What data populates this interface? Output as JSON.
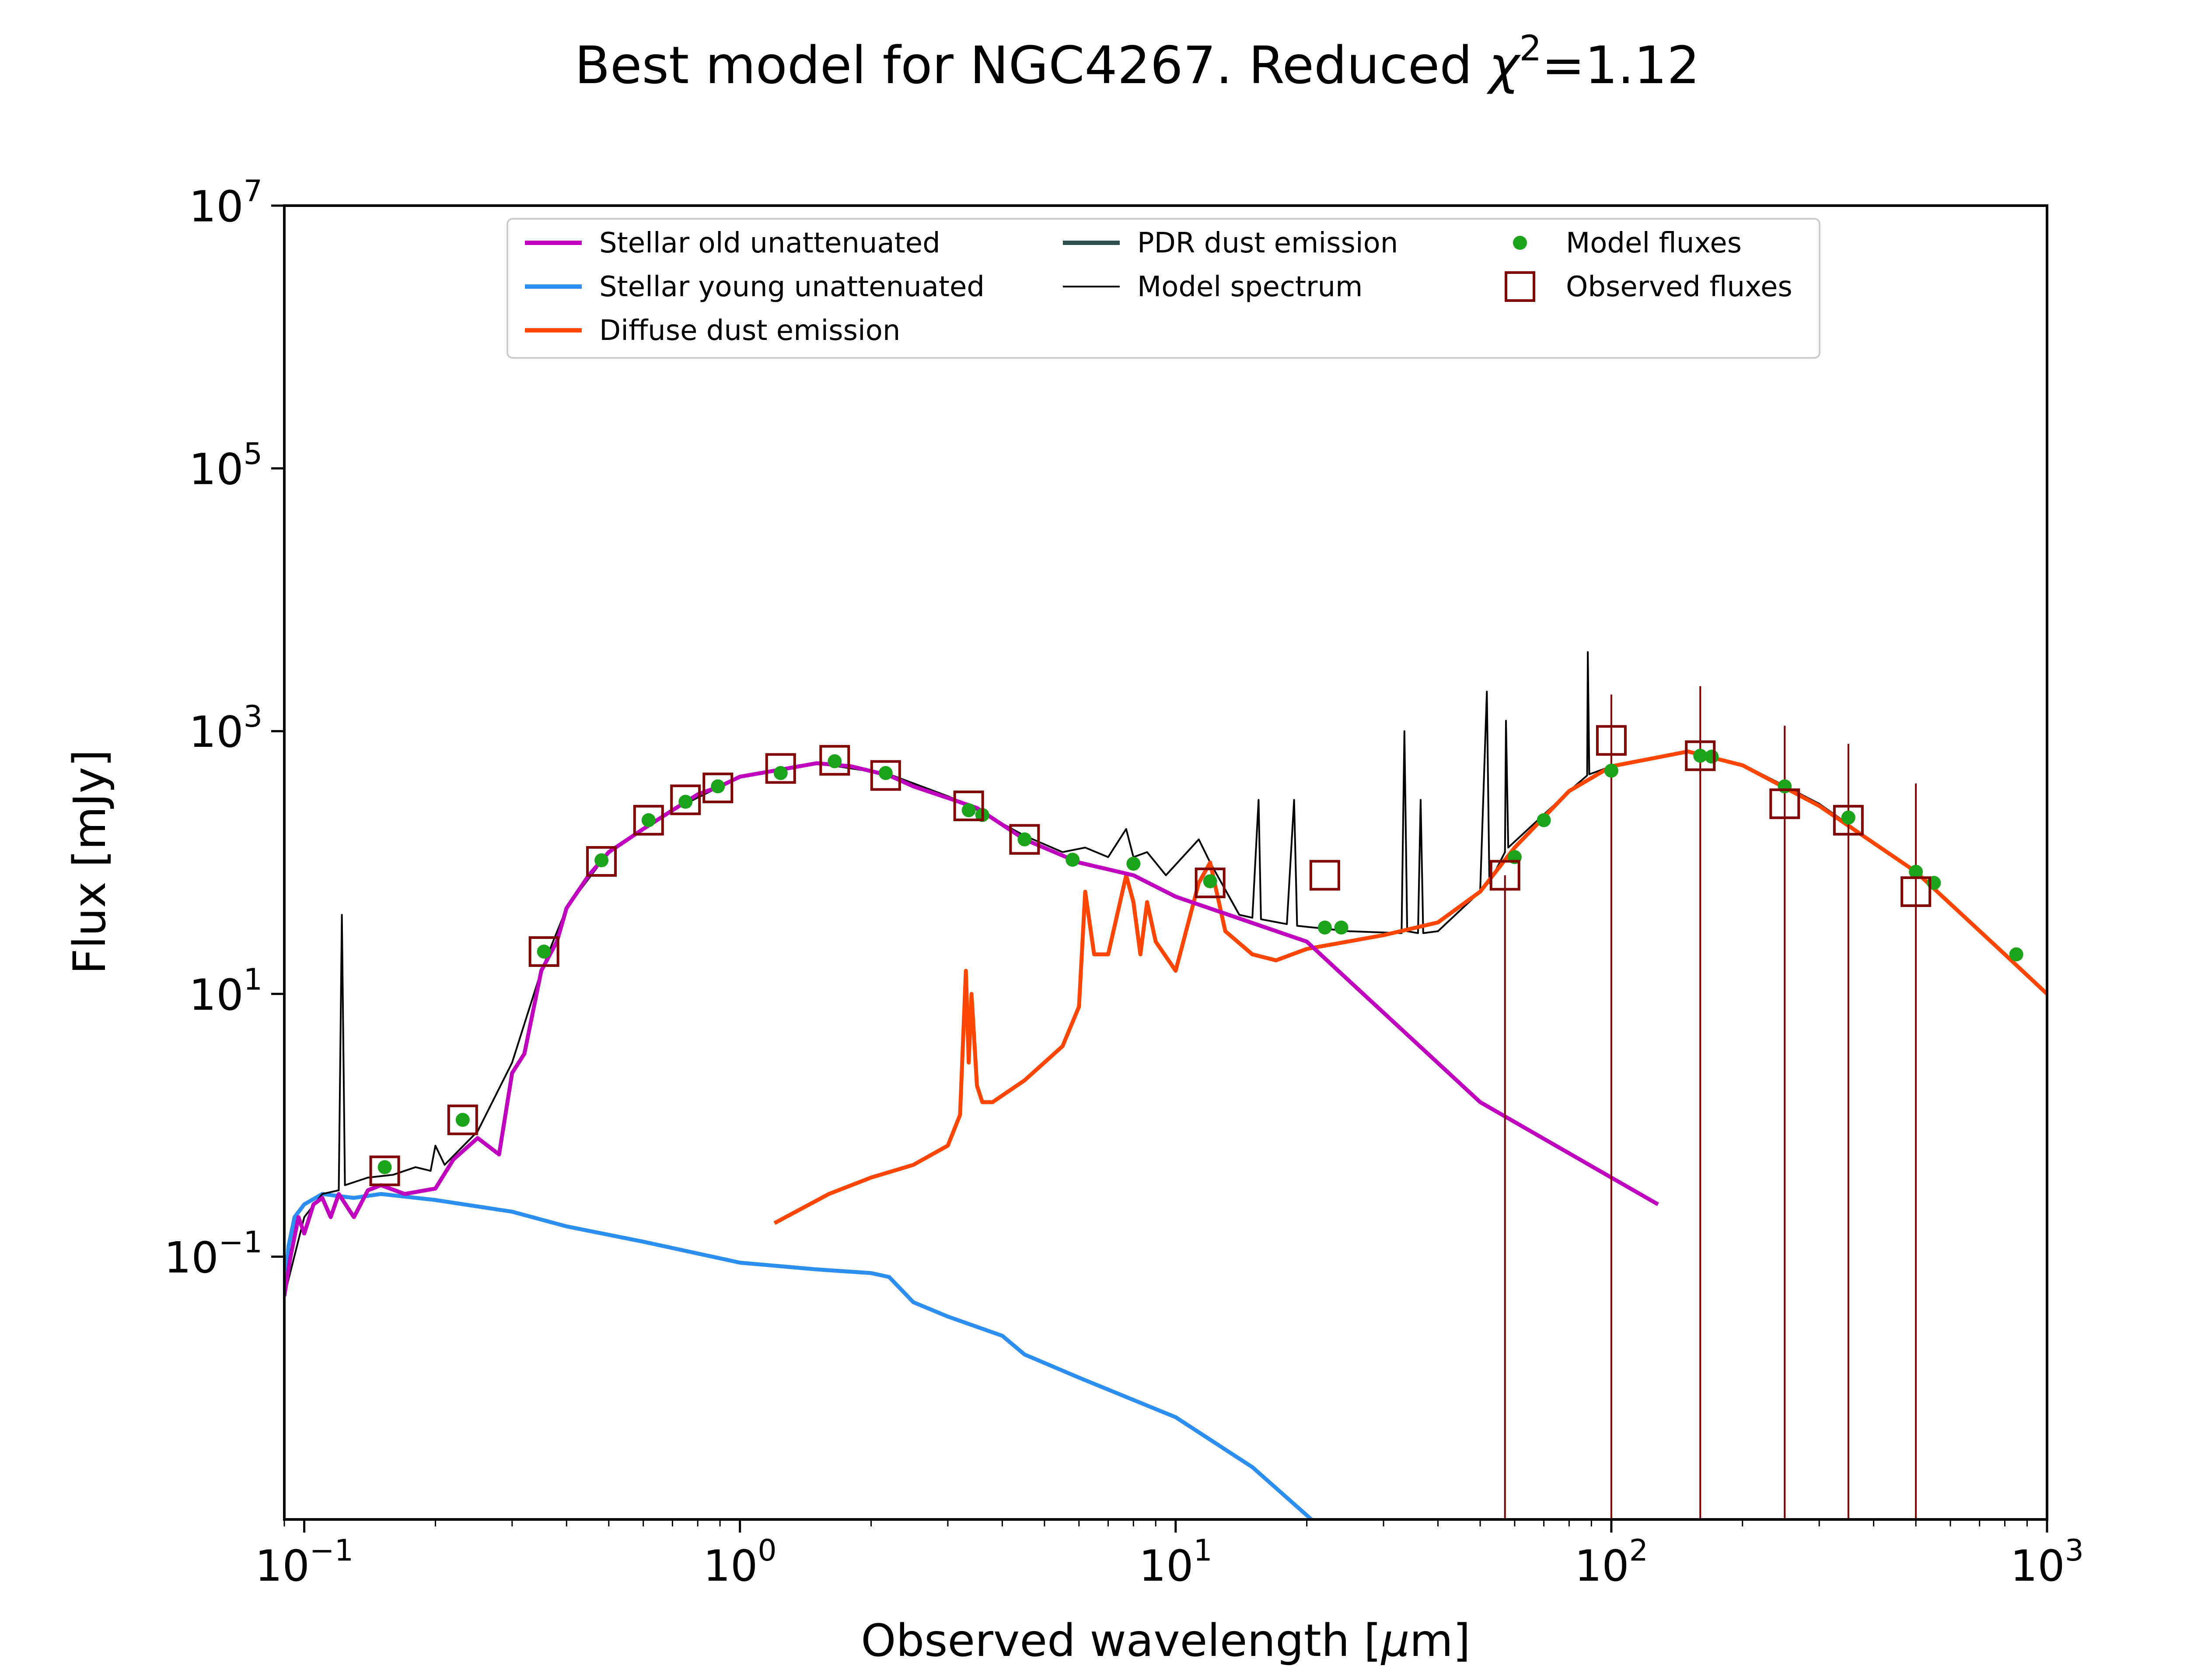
{
  "chart_data": {
    "type": "line",
    "title_text": "Best model for NGC4267. Reduced ",
    "title_chi": "χ",
    "title_chi_exp": "2",
    "title_value": "=1.12",
    "xlabel_text": "Observed wavelength [",
    "xlabel_mu": "μ",
    "xlabel_unit": "m]",
    "ylabel": "Flux [mJy]",
    "x_scale": "log",
    "y_scale": "log",
    "xlim": [
      0.09,
      1000
    ],
    "ylim": [
      0.001,
      10000000
    ],
    "grid": false,
    "legend_placement": "top",
    "x_ticks": [
      {
        "base": "10",
        "exp": "−1",
        "value": 0.1
      },
      {
        "base": "10",
        "exp": "0",
        "value": 1
      },
      {
        "base": "10",
        "exp": "1",
        "value": 10
      },
      {
        "base": "10",
        "exp": "2",
        "value": 100
      },
      {
        "base": "10",
        "exp": "3",
        "value": 1000
      }
    ],
    "y_ticks": [
      {
        "base": "10",
        "exp": "−1",
        "value": 0.1
      },
      {
        "base": "10",
        "exp": "1",
        "value": 10
      },
      {
        "base": "10",
        "exp": "3",
        "value": 1000
      },
      {
        "base": "10",
        "exp": "5",
        "value": 100000
      },
      {
        "base": "10",
        "exp": "7",
        "value": 10000000
      }
    ],
    "series": [
      {
        "name": "Stellar old unattenuated",
        "color": "#bf00bf",
        "points": [
          [
            0.09,
            0.05
          ],
          [
            0.093,
            0.1
          ],
          [
            0.097,
            0.2
          ],
          [
            0.1,
            0.15
          ],
          [
            0.105,
            0.25
          ],
          [
            0.11,
            0.28
          ],
          [
            0.115,
            0.2
          ],
          [
            0.12,
            0.3
          ],
          [
            0.13,
            0.2
          ],
          [
            0.14,
            0.32
          ],
          [
            0.15,
            0.35
          ],
          [
            0.17,
            0.3
          ],
          [
            0.2,
            0.33
          ],
          [
            0.22,
            0.55
          ],
          [
            0.25,
            0.8
          ],
          [
            0.28,
            0.6
          ],
          [
            0.3,
            2.5
          ],
          [
            0.32,
            3.5
          ],
          [
            0.35,
            15
          ],
          [
            0.38,
            25
          ],
          [
            0.4,
            45
          ],
          [
            0.45,
            80
          ],
          [
            0.5,
            120
          ],
          [
            0.6,
            180
          ],
          [
            0.7,
            250
          ],
          [
            0.8,
            330
          ],
          [
            0.9,
            380
          ],
          [
            1.0,
            450
          ],
          [
            1.2,
            500
          ],
          [
            1.5,
            570
          ],
          [
            1.8,
            540
          ],
          [
            2.2,
            460
          ],
          [
            2.5,
            380
          ],
          [
            3.0,
            310
          ],
          [
            3.5,
            260
          ],
          [
            4.5,
            150
          ],
          [
            6,
            100
          ],
          [
            8,
            80
          ],
          [
            10,
            55
          ],
          [
            20,
            25
          ],
          [
            50,
            1.5
          ],
          [
            100,
            0.4
          ],
          [
            128,
            0.25
          ]
        ]
      },
      {
        "name": "Stellar young unattenuated",
        "color": "#2c8ef0",
        "points": [
          [
            0.09,
            0.05
          ],
          [
            0.092,
            0.12
          ],
          [
            0.095,
            0.2
          ],
          [
            0.1,
            0.25
          ],
          [
            0.11,
            0.3
          ],
          [
            0.13,
            0.28
          ],
          [
            0.15,
            0.3
          ],
          [
            0.2,
            0.27
          ],
          [
            0.3,
            0.22
          ],
          [
            0.4,
            0.17
          ],
          [
            0.6,
            0.13
          ],
          [
            1.0,
            0.09
          ],
          [
            1.5,
            0.08
          ],
          [
            2.0,
            0.075
          ],
          [
            2.2,
            0.07
          ],
          [
            2.5,
            0.045
          ],
          [
            3,
            0.035
          ],
          [
            4,
            0.025
          ],
          [
            4.5,
            0.018
          ],
          [
            6,
            0.012
          ],
          [
            10,
            0.006
          ],
          [
            15,
            0.0025
          ],
          [
            20.5,
            0.001
          ]
        ]
      },
      {
        "name": "Diffuse dust emission",
        "color": "#ff4500",
        "points": [
          [
            1.2,
            0.18
          ],
          [
            1.6,
            0.3
          ],
          [
            2.0,
            0.4
          ],
          [
            2.5,
            0.5
          ],
          [
            3.0,
            0.7
          ],
          [
            3.2,
            1.2
          ],
          [
            3.3,
            15
          ],
          [
            3.35,
            3
          ],
          [
            3.4,
            10
          ],
          [
            3.5,
            2
          ],
          [
            3.6,
            1.5
          ],
          [
            3.8,
            1.5
          ],
          [
            4.5,
            2.2
          ],
          [
            5.5,
            4
          ],
          [
            6.0,
            8
          ],
          [
            6.2,
            60
          ],
          [
            6.5,
            20
          ],
          [
            7.0,
            20
          ],
          [
            7.7,
            80
          ],
          [
            8.0,
            50
          ],
          [
            8.3,
            20
          ],
          [
            8.6,
            50
          ],
          [
            9.0,
            25
          ],
          [
            10.0,
            15
          ],
          [
            11.3,
            70
          ],
          [
            12,
            100
          ],
          [
            13,
            30
          ],
          [
            15,
            20
          ],
          [
            17,
            18
          ],
          [
            20,
            22
          ],
          [
            30,
            28
          ],
          [
            40,
            35
          ],
          [
            50,
            60
          ],
          [
            60,
            130
          ],
          [
            80,
            350
          ],
          [
            100,
            540
          ],
          [
            150,
            700
          ],
          [
            200,
            550
          ],
          [
            300,
            270
          ],
          [
            500,
            85
          ],
          [
            800,
            20
          ],
          [
            1000,
            10
          ]
        ]
      },
      {
        "name": "Model spectrum",
        "color": "#000000",
        "points": [
          [
            0.09,
            0.05
          ],
          [
            0.1,
            0.2
          ],
          [
            0.11,
            0.3
          ],
          [
            0.12,
            0.32
          ],
          [
            0.122,
            40
          ],
          [
            0.124,
            0.35
          ],
          [
            0.14,
            0.4
          ],
          [
            0.16,
            0.42
          ],
          [
            0.18,
            0.48
          ],
          [
            0.195,
            0.45
          ],
          [
            0.2,
            0.7
          ],
          [
            0.21,
            0.5
          ],
          [
            0.25,
            0.9
          ],
          [
            0.3,
            3
          ],
          [
            0.35,
            15
          ],
          [
            0.4,
            45
          ],
          [
            0.5,
            120
          ],
          [
            0.7,
            250
          ],
          [
            1.0,
            450
          ],
          [
            1.5,
            570
          ],
          [
            2.2,
            470
          ],
          [
            3.0,
            320
          ],
          [
            3.3,
            280
          ],
          [
            4.5,
            160
          ],
          [
            5.5,
            120
          ],
          [
            6.2,
            130
          ],
          [
            7.0,
            110
          ],
          [
            7.7,
            180
          ],
          [
            8.0,
            110
          ],
          [
            8.6,
            120
          ],
          [
            9.5,
            80
          ],
          [
            11.3,
            150
          ],
          [
            12,
            100
          ],
          [
            14,
            40
          ],
          [
            15,
            38
          ],
          [
            15.5,
            300
          ],
          [
            15.7,
            37
          ],
          [
            18,
            34
          ],
          [
            18.7,
            300
          ],
          [
            19,
            33
          ],
          [
            25,
            30
          ],
          [
            33,
            29
          ],
          [
            33.5,
            1000
          ],
          [
            34,
            30
          ],
          [
            36,
            29
          ],
          [
            36.5,
            300
          ],
          [
            37,
            29
          ],
          [
            40,
            30
          ],
          [
            50,
            60
          ],
          [
            51.8,
            2000
          ],
          [
            52.5,
            70
          ],
          [
            57,
            120
          ],
          [
            57.3,
            1200
          ],
          [
            58,
            130
          ],
          [
            80,
            350
          ],
          [
            88,
            460
          ],
          [
            88.3,
            4000
          ],
          [
            89,
            470
          ],
          [
            100,
            540
          ],
          [
            150,
            700
          ],
          [
            200,
            560
          ],
          [
            300,
            280
          ],
          [
            500,
            85
          ],
          [
            800,
            20
          ],
          [
            1000,
            10
          ]
        ]
      }
    ],
    "model_fluxes": {
      "name": "Model fluxes",
      "color": "#1ca31c",
      "points": [
        [
          0.153,
          0.48
        ],
        [
          0.231,
          1.1
        ],
        [
          0.355,
          21
        ],
        [
          0.481,
          104
        ],
        [
          0.617,
          210
        ],
        [
          0.75,
          290
        ],
        [
          0.89,
          380
        ],
        [
          1.24,
          480
        ],
        [
          1.65,
          590
        ],
        [
          2.16,
          480
        ],
        [
          3.35,
          250
        ],
        [
          3.6,
          230
        ],
        [
          4.5,
          150
        ],
        [
          5.8,
          105
        ],
        [
          8.0,
          98
        ],
        [
          12,
          72
        ],
        [
          22,
          32
        ],
        [
          24,
          32
        ],
        [
          60,
          110
        ],
        [
          70,
          210
        ],
        [
          100,
          500
        ],
        [
          160,
          650
        ],
        [
          170,
          640
        ],
        [
          250,
          380
        ],
        [
          350,
          220
        ],
        [
          500,
          85
        ],
        [
          550,
          70
        ],
        [
          850,
          20
        ]
      ]
    },
    "observed_fluxes": {
      "name": "Observed fluxes",
      "color": "#800000",
      "points": [
        [
          0.153,
          0.45
        ],
        [
          0.231,
          1.1
        ],
        [
          0.355,
          21
        ],
        [
          0.481,
          102
        ],
        [
          0.617,
          210
        ],
        [
          0.75,
          300
        ],
        [
          0.89,
          370
        ],
        [
          1.24,
          520
        ],
        [
          1.65,
          600
        ],
        [
          2.16,
          460
        ],
        [
          3.35,
          270
        ],
        [
          4.5,
          150
        ],
        [
          12,
          70
        ],
        [
          22,
          80
        ],
        [
          57,
          80
        ],
        [
          100,
          850
        ],
        [
          160,
          650
        ],
        [
          250,
          280
        ],
        [
          350,
          210
        ],
        [
          500,
          60
        ]
      ],
      "error_bars": [
        [
          57,
          0.001,
          0
        ],
        [
          100,
          0.001,
          1900
        ],
        [
          160,
          0.001,
          2200
        ],
        [
          250,
          0.001,
          1100
        ],
        [
          350,
          0.001,
          800
        ],
        [
          500,
          0.001,
          400
        ]
      ]
    },
    "legend": [
      {
        "label": "Stellar old unattenuated",
        "kind": "line",
        "color": "#bf00bf",
        "width": 10
      },
      {
        "label": "Stellar young unattenuated",
        "kind": "line",
        "color": "#2c8ef0",
        "width": 10
      },
      {
        "label": "Diffuse dust emission",
        "kind": "line",
        "color": "#ff4500",
        "width": 10
      },
      {
        "label": "PDR dust emission",
        "kind": "line",
        "color": "#2f4f4f",
        "width": 10
      },
      {
        "label": "Model spectrum",
        "kind": "line",
        "color": "#000000",
        "width": 4
      },
      {
        "label": "Model fluxes",
        "kind": "dot",
        "color": "#1ca31c"
      },
      {
        "label": "Observed fluxes",
        "kind": "square",
        "color": "#800000"
      }
    ]
  }
}
